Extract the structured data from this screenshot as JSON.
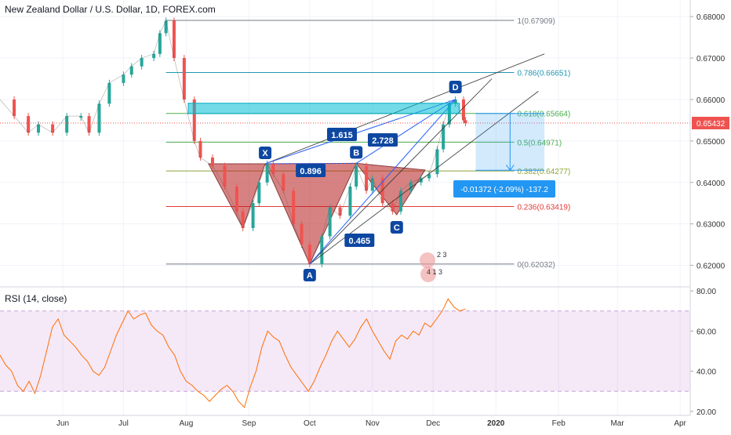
{
  "header": {
    "title": "New Zealand Dollar / U.S. Dollar, 1D, FOREX.com"
  },
  "rsi_panel": {
    "title": "RSI (14, close)"
  },
  "chart_data": [
    {
      "type": "candlestick",
      "title": "New Zealand Dollar / U.S. Dollar, 1D, FOREX.com",
      "ylim": [
        0.615,
        0.684
      ],
      "y_ticks": [
        "0.68000",
        "0.67000",
        "0.66000",
        "0.65000",
        "0.64000",
        "0.63000",
        "0.62000"
      ],
      "x_ticks": [
        "Jun",
        "Jul",
        "Aug",
        "Sep",
        "Oct",
        "Nov",
        "Dec",
        "2020",
        "Feb",
        "Mar",
        "Apr"
      ],
      "last_price": "0.65432",
      "price_path": [
        [
          "2019-05-01",
          0.66
        ],
        [
          "2019-05-08",
          0.656
        ],
        [
          "2019-05-15",
          0.652
        ],
        [
          "2019-05-20",
          0.654
        ],
        [
          "2019-05-27",
          0.652
        ],
        [
          "2019-06-03",
          0.656
        ],
        [
          "2019-06-10",
          0.656
        ],
        [
          "2019-06-14",
          0.652
        ],
        [
          "2019-06-19",
          0.659
        ],
        [
          "2019-06-24",
          0.664
        ],
        [
          "2019-07-01",
          0.666
        ],
        [
          "2019-07-05",
          0.668
        ],
        [
          "2019-07-10",
          0.67
        ],
        [
          "2019-07-16",
          0.671
        ],
        [
          "2019-07-19",
          0.676
        ],
        [
          "2019-07-22",
          0.679
        ],
        [
          "2019-07-26",
          0.67
        ],
        [
          "2019-07-31",
          0.66
        ],
        [
          "2019-08-05",
          0.65
        ],
        [
          "2019-08-08",
          0.646
        ],
        [
          "2019-08-14",
          0.644
        ],
        [
          "2019-08-20",
          0.639
        ],
        [
          "2019-08-26",
          0.633
        ],
        [
          "2019-08-29",
          0.629
        ],
        [
          "2019-09-03",
          0.635
        ],
        [
          "2019-09-06",
          0.64
        ],
        [
          "2019-09-10",
          0.6445
        ],
        [
          "2019-09-13",
          0.642
        ],
        [
          "2019-09-18",
          0.638
        ],
        [
          "2019-09-23",
          0.63
        ],
        [
          "2019-09-27",
          0.625
        ],
        [
          "2019-10-01",
          0.6203
        ],
        [
          "2019-10-07",
          0.627
        ],
        [
          "2019-10-11",
          0.634
        ],
        [
          "2019-10-16",
          0.632
        ],
        [
          "2019-10-21",
          0.639
        ],
        [
          "2019-10-24",
          0.644
        ],
        [
          "2019-10-29",
          0.638
        ],
        [
          "2019-11-01",
          0.641
        ],
        [
          "2019-11-06",
          0.635
        ],
        [
          "2019-11-11",
          0.633
        ],
        [
          "2019-11-15",
          0.638
        ],
        [
          "2019-11-20",
          0.64
        ],
        [
          "2019-11-25",
          0.641
        ],
        [
          "2019-11-29",
          0.642
        ],
        [
          "2019-12-03",
          0.648
        ],
        [
          "2019-12-06",
          0.654
        ],
        [
          "2019-12-09",
          0.659
        ],
        [
          "2019-12-12",
          0.66
        ],
        [
          "2019-12-16",
          0.655
        ],
        [
          "2019-12-17",
          0.6543
        ]
      ],
      "fibonacci": [
        {
          "label": "1(0.67909)",
          "value": 0.67909,
          "color": "#787b86"
        },
        {
          "label": "0.786(0.66651)",
          "value": 0.66651,
          "color": "#2196b3"
        },
        {
          "label": "0.618(0.65664)",
          "value": 0.65664,
          "color": "#4caf50"
        },
        {
          "label": "0.5(0.64971)",
          "value": 0.64971,
          "color": "#4caf50"
        },
        {
          "label": "0.382(0.64277)",
          "value": 0.64277,
          "color": "#8da53a"
        },
        {
          "label": "0.236(0.63419)",
          "value": 0.63419,
          "color": "#e53935"
        },
        {
          "label": "0(0.62032)",
          "value": 0.62032,
          "color": "#787b86"
        }
      ],
      "pattern_points": [
        {
          "label": "X",
          "date": "2019-09-09",
          "price": 0.6445
        },
        {
          "label": "A",
          "date": "2019-10-01",
          "price": 0.6203
        },
        {
          "label": "B",
          "date": "2019-10-24",
          "price": 0.6446
        },
        {
          "label": "C",
          "date": "2019-11-13",
          "price": 0.6322
        },
        {
          "label": "D",
          "date": "2019-12-12",
          "price": 0.66
        }
      ],
      "ratio_labels": [
        "0.896",
        "0.465",
        "1.615",
        "2.728"
      ],
      "projection_label": "-0.01372 (-2.09%) -137.2",
      "event_badges": [
        "2 3",
        "4 1 3"
      ]
    },
    {
      "type": "line",
      "title": "RSI (14, close)",
      "ylim": [
        18,
        82
      ],
      "y_ticks": [
        "80.00",
        "60.00",
        "40.00",
        "20.00"
      ],
      "bands": [
        30,
        70
      ],
      "series": [
        {
          "values": [
            48,
            43,
            40,
            33,
            30,
            35,
            29,
            38,
            50,
            62,
            66,
            58,
            55,
            52,
            48,
            45,
            40,
            38,
            42,
            50,
            58,
            64,
            70,
            66,
            68,
            69,
            63,
            60,
            58,
            52,
            48,
            40,
            35,
            33,
            30,
            28,
            25,
            28,
            31,
            33,
            30,
            25,
            22,
            32,
            40,
            52,
            60,
            57,
            55,
            48,
            42,
            38,
            34,
            30,
            35,
            42,
            48,
            55,
            60,
            56,
            52,
            56,
            62,
            66,
            60,
            55,
            50,
            46,
            55,
            58,
            56,
            60,
            58,
            64,
            62,
            66,
            70,
            76,
            72,
            70,
            71
          ]
        }
      ]
    }
  ]
}
